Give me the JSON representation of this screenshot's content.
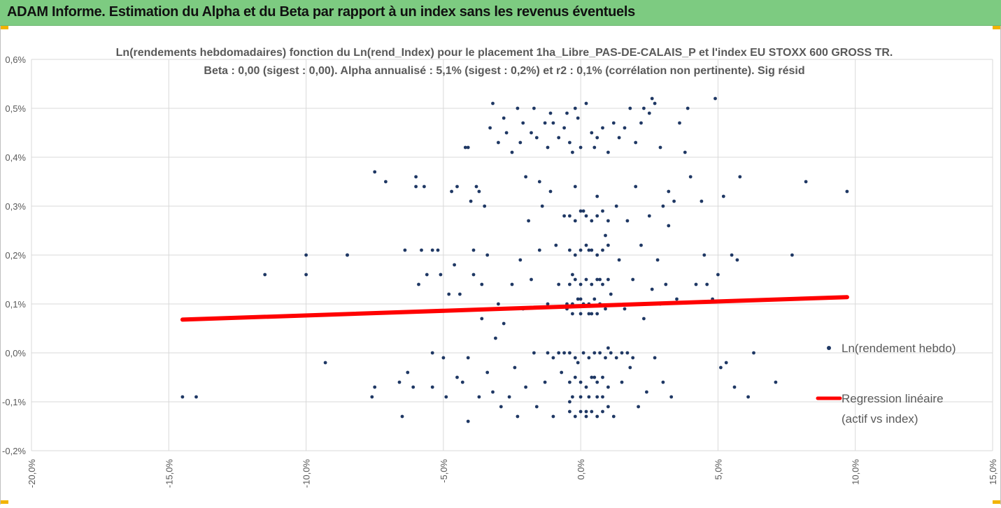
{
  "header": {
    "title": "ADAM Informe. Estimation du Alpha et du Beta par rapport à un index sans les revenus éventuels"
  },
  "colors": {
    "header_bg": "#7dcb81",
    "accent": "#f2b400",
    "points": "#1f3864",
    "regression": "#ff0000",
    "grid": "#d9d9d9",
    "text": "#595959"
  },
  "chart_data": {
    "type": "scatter",
    "title": "Ln(rendements hebdomadaires) fonction du Ln(rend_Index) pour le placement 1ha_Libre_PAS-DE-CALAIS_P et l'index EU STOXX 600 GROSS TR.",
    "subtitle": "Beta : 0,00 (sigest : 0,00). Alpha annualisé : 5,1% (sigest : 0,2%) et r2 : 0,1% (corrélation non pertinente). Sig résid",
    "xlim": [
      -0.2,
      0.15
    ],
    "ylim": [
      -0.002,
      0.006
    ],
    "xticks": [
      "-20,0%",
      "-15,0%",
      "-10,0%",
      "-5,0%",
      "0,0%",
      "5,0%",
      "10,0%",
      "15,0%"
    ],
    "yticks": [
      "-0,2%",
      "-0,1%",
      "0,0%",
      "0,1%",
      "0,2%",
      "0,3%",
      "0,4%",
      "0,5%",
      "0,6%"
    ],
    "grid": true,
    "legend_position": "right",
    "series": [
      {
        "name": "Ln(rendement hebdo)",
        "kind": "scatter",
        "color": "#1f3864",
        "points": [
          [
            -0.145,
            -0.0009
          ],
          [
            -0.14,
            -0.0009
          ],
          [
            -0.115,
            0.0016
          ],
          [
            -0.1,
            0.002
          ],
          [
            -0.1,
            0.0016
          ],
          [
            -0.093,
            -0.0002
          ],
          [
            -0.085,
            0.002
          ],
          [
            -0.085,
            0.002
          ],
          [
            -0.075,
            0.0037
          ],
          [
            -0.075,
            -0.0007
          ],
          [
            -0.076,
            -0.0009
          ],
          [
            -0.071,
            0.0035
          ],
          [
            -0.066,
            -0.0006
          ],
          [
            -0.065,
            -0.0013
          ],
          [
            -0.064,
            0.0021
          ],
          [
            -0.063,
            -0.0004
          ],
          [
            -0.061,
            -0.0007
          ],
          [
            -0.06,
            0.0036
          ],
          [
            -0.06,
            0.0034
          ],
          [
            -0.059,
            0.0014
          ],
          [
            -0.058,
            0.0021
          ],
          [
            -0.057,
            0.0034
          ],
          [
            -0.056,
            0.0016
          ],
          [
            -0.054,
            0.0021
          ],
          [
            -0.054,
            0.0
          ],
          [
            -0.054,
            -0.0007
          ],
          [
            -0.052,
            0.0021
          ],
          [
            -0.051,
            0.0016
          ],
          [
            -0.05,
            -0.0001
          ],
          [
            -0.049,
            -0.0009
          ],
          [
            -0.047,
            0.0033
          ],
          [
            -0.046,
            0.0018
          ],
          [
            -0.045,
            0.0034
          ],
          [
            -0.044,
            0.0012
          ],
          [
            -0.042,
            0.0042
          ],
          [
            -0.041,
            0.0042
          ],
          [
            -0.041,
            -0.0014
          ],
          [
            -0.04,
            0.0031
          ],
          [
            -0.039,
            0.0021
          ],
          [
            -0.038,
            0.0034
          ],
          [
            -0.037,
            0.0033
          ],
          [
            -0.037,
            -0.0009
          ],
          [
            -0.036,
            0.0014
          ],
          [
            -0.035,
            0.003
          ],
          [
            -0.034,
            0.002
          ],
          [
            -0.033,
            0.0046
          ],
          [
            -0.032,
            0.0051
          ],
          [
            -0.031,
            0.0003
          ],
          [
            -0.03,
            0.0043
          ],
          [
            -0.028,
            0.0048
          ],
          [
            -0.027,
            0.0045
          ],
          [
            -0.025,
            0.0041
          ],
          [
            -0.023,
            0.005
          ],
          [
            -0.022,
            0.0043
          ],
          [
            -0.021,
            0.0047
          ],
          [
            -0.02,
            0.0036
          ],
          [
            -0.018,
            0.0045
          ],
          [
            -0.017,
            0.005
          ],
          [
            -0.016,
            0.0044
          ],
          [
            -0.015,
            0.0035
          ],
          [
            -0.013,
            0.0047
          ],
          [
            -0.012,
            0.0042
          ],
          [
            -0.011,
            0.0049
          ],
          [
            -0.01,
            0.0047
          ],
          [
            -0.008,
            0.0044
          ],
          [
            -0.006,
            0.0046
          ],
          [
            -0.005,
            0.0049
          ],
          [
            -0.004,
            0.0043
          ],
          [
            -0.003,
            0.0041
          ],
          [
            -0.002,
            0.005
          ],
          [
            -0.001,
            0.0048
          ],
          [
            0.0,
            0.0042
          ],
          [
            0.002,
            0.0051
          ],
          [
            0.004,
            0.0045
          ],
          [
            0.005,
            0.0042
          ],
          [
            0.006,
            0.0044
          ],
          [
            0.008,
            0.0046
          ],
          [
            0.01,
            0.0041
          ],
          [
            0.012,
            0.0047
          ],
          [
            0.014,
            0.0044
          ],
          [
            0.016,
            0.0046
          ],
          [
            0.018,
            0.005
          ],
          [
            0.02,
            0.0043
          ],
          [
            0.022,
            0.0047
          ],
          [
            0.023,
            0.005
          ],
          [
            0.025,
            0.0049
          ],
          [
            0.026,
            0.0052
          ],
          [
            0.027,
            0.0051
          ],
          [
            0.029,
            0.0042
          ],
          [
            0.03,
            0.003
          ],
          [
            0.032,
            0.0033
          ],
          [
            0.034,
            0.0031
          ],
          [
            0.036,
            0.0047
          ],
          [
            0.038,
            0.0041
          ],
          [
            0.039,
            0.005
          ],
          [
            0.04,
            0.0036
          ],
          [
            0.042,
            0.0014
          ],
          [
            0.044,
            0.0031
          ],
          [
            0.045,
            0.002
          ],
          [
            0.046,
            0.0014
          ],
          [
            0.048,
            0.0011
          ],
          [
            0.049,
            0.0052
          ],
          [
            0.05,
            0.0016
          ],
          [
            0.051,
            -0.0003
          ],
          [
            0.052,
            0.0032
          ],
          [
            0.053,
            -0.0002
          ],
          [
            0.055,
            0.002
          ],
          [
            0.056,
            -0.0007
          ],
          [
            0.057,
            0.0019
          ],
          [
            0.058,
            0.0036
          ],
          [
            0.061,
            -0.0009
          ],
          [
            0.063,
            0.0
          ],
          [
            0.071,
            -0.0006
          ],
          [
            0.077,
            0.002
          ],
          [
            0.082,
            0.0035
          ],
          [
            0.097,
            0.0033
          ],
          [
            -0.048,
            0.0012
          ],
          [
            -0.045,
            -0.0005
          ],
          [
            -0.043,
            -0.0006
          ],
          [
            -0.041,
            -0.0001
          ],
          [
            -0.039,
            0.0016
          ],
          [
            -0.036,
            0.0007
          ],
          [
            -0.034,
            -0.0004
          ],
          [
            -0.032,
            -0.0008
          ],
          [
            -0.03,
            0.001
          ],
          [
            -0.029,
            -0.0011
          ],
          [
            -0.028,
            0.0006
          ],
          [
            -0.026,
            -0.0009
          ],
          [
            -0.025,
            0.0014
          ],
          [
            -0.024,
            -0.0003
          ],
          [
            -0.023,
            -0.0013
          ],
          [
            -0.022,
            0.0019
          ],
          [
            -0.021,
            0.0009
          ],
          [
            -0.02,
            -0.0007
          ],
          [
            -0.019,
            0.0027
          ],
          [
            -0.018,
            0.0015
          ],
          [
            -0.017,
            0.0
          ],
          [
            -0.016,
            -0.0011
          ],
          [
            -0.015,
            0.0021
          ],
          [
            -0.014,
            0.003
          ],
          [
            -0.013,
            -0.0006
          ],
          [
            -0.012,
            0.001
          ],
          [
            -0.011,
            0.0033
          ],
          [
            -0.01,
            -0.0013
          ],
          [
            -0.009,
            0.0022
          ],
          [
            -0.008,
            0.0014
          ],
          [
            -0.007,
            -0.0004
          ],
          [
            -0.006,
            0.0028
          ],
          [
            -0.005,
            0.0009
          ],
          [
            -0.004,
            -0.001
          ],
          [
            -0.003,
            0.0016
          ],
          [
            -0.002,
            0.0034
          ],
          [
            -0.001,
            -0.0002
          ],
          [
            0.0,
            0.0011
          ],
          [
            0.001,
            0.0029
          ],
          [
            0.002,
            -0.0012
          ],
          [
            0.003,
            0.0021
          ],
          [
            0.004,
            0.0008
          ],
          [
            0.005,
            -0.0005
          ],
          [
            0.006,
            0.0032
          ],
          [
            0.007,
            0.0015
          ],
          [
            0.008,
            -0.0009
          ],
          [
            0.009,
            0.0024
          ],
          [
            0.01,
            0.0001
          ],
          [
            0.011,
            0.0012
          ],
          [
            0.012,
            -0.0013
          ],
          [
            0.013,
            0.003
          ],
          [
            0.014,
            0.0019
          ],
          [
            0.015,
            -0.0006
          ],
          [
            0.016,
            0.0009
          ],
          [
            0.017,
            0.0027
          ],
          [
            0.018,
            -0.0003
          ],
          [
            0.019,
            0.0015
          ],
          [
            0.02,
            0.0034
          ],
          [
            0.021,
            -0.0011
          ],
          [
            0.022,
            0.0022
          ],
          [
            0.023,
            0.0007
          ],
          [
            0.024,
            -0.0008
          ],
          [
            0.025,
            0.0028
          ],
          [
            0.026,
            0.0013
          ],
          [
            0.027,
            -0.0001
          ],
          [
            0.028,
            0.0019
          ],
          [
            0.029,
            0.001
          ],
          [
            0.03,
            -0.0006
          ],
          [
            0.031,
            0.0014
          ],
          [
            0.032,
            0.0026
          ],
          [
            0.033,
            -0.0009
          ],
          [
            0.035,
            0.0011
          ],
          [
            -0.006,
            0.0
          ],
          [
            -0.004,
            0.0
          ],
          [
            -0.002,
            -0.0001
          ],
          [
            0.001,
            0.0
          ],
          [
            0.003,
            -0.0001
          ],
          [
            0.005,
            0.0
          ],
          [
            0.007,
            0.0
          ],
          [
            0.009,
            -0.0001
          ],
          [
            -0.012,
            0.0
          ],
          [
            -0.01,
            -0.0001
          ],
          [
            -0.008,
            0.0
          ],
          [
            0.011,
            0.0
          ],
          [
            0.013,
            -0.0001
          ],
          [
            0.015,
            0.0
          ],
          [
            0.017,
            0.0
          ],
          [
            0.019,
            -0.0001
          ],
          [
            -0.005,
            0.001
          ],
          [
            -0.003,
            0.001
          ],
          [
            -0.001,
            0.0011
          ],
          [
            0.001,
            0.001
          ],
          [
            0.003,
            0.001
          ],
          [
            0.005,
            0.0011
          ],
          [
            0.007,
            0.001
          ],
          [
            0.009,
            0.0009
          ],
          [
            -0.004,
            0.0014
          ],
          [
            -0.002,
            0.0015
          ],
          [
            0.0,
            0.0014
          ],
          [
            0.002,
            0.0015
          ],
          [
            0.004,
            0.0014
          ],
          [
            0.006,
            0.0015
          ],
          [
            0.008,
            0.0014
          ],
          [
            0.01,
            0.0015
          ],
          [
            -0.004,
            0.0021
          ],
          [
            -0.002,
            0.002
          ],
          [
            0.0,
            0.0021
          ],
          [
            0.002,
            0.0022
          ],
          [
            0.004,
            0.0021
          ],
          [
            0.006,
            0.002
          ],
          [
            0.008,
            0.0021
          ],
          [
            0.01,
            0.0022
          ],
          [
            -0.004,
            0.0028
          ],
          [
            -0.002,
            0.0027
          ],
          [
            0.0,
            0.0029
          ],
          [
            0.002,
            0.0028
          ],
          [
            0.004,
            0.0027
          ],
          [
            0.006,
            0.0028
          ],
          [
            0.008,
            0.0029
          ],
          [
            0.01,
            0.0027
          ],
          [
            -0.004,
            -0.0006
          ],
          [
            -0.002,
            -0.0005
          ],
          [
            0.0,
            -0.0006
          ],
          [
            0.002,
            -0.0007
          ],
          [
            0.004,
            -0.0005
          ],
          [
            0.006,
            -0.0006
          ],
          [
            0.008,
            -0.0005
          ],
          [
            0.01,
            -0.0007
          ],
          [
            -0.004,
            -0.0012
          ],
          [
            -0.002,
            -0.0013
          ],
          [
            0.0,
            -0.0012
          ],
          [
            0.002,
            -0.0013
          ],
          [
            0.004,
            -0.0012
          ],
          [
            0.006,
            -0.0013
          ],
          [
            0.008,
            -0.0012
          ],
          [
            0.01,
            -0.0011
          ],
          [
            -0.003,
            0.0008
          ],
          [
            0.0,
            0.0008
          ],
          [
            0.003,
            0.0008
          ],
          [
            0.006,
            0.0008
          ],
          [
            -0.003,
            -0.0009
          ],
          [
            0.0,
            -0.0009
          ],
          [
            0.003,
            -0.0009
          ],
          [
            0.006,
            -0.0009
          ]
        ]
      },
      {
        "name": "Regression linéaire (actif vs index)",
        "kind": "line",
        "color": "#ff0000",
        "points": [
          [
            -0.145,
            0.00068
          ],
          [
            0.097,
            0.00114
          ]
        ]
      }
    ],
    "legend": [
      {
        "label": "Ln(rendement hebdo)"
      },
      {
        "label_line1": "Regression linéaire",
        "label_line2": "(actif vs index)"
      }
    ]
  }
}
